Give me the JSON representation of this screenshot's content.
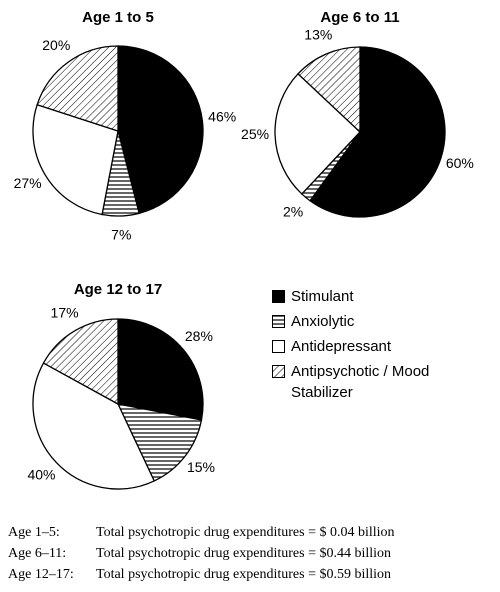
{
  "chart_data": [
    {
      "type": "pie",
      "title": "Age 1 to 5",
      "categories": [
        "Stimulant",
        "Anxiolytic",
        "Antidepressant",
        "Antipsychotic / Mood Stabilizer"
      ],
      "values": [
        46,
        7,
        27,
        20
      ],
      "value_labels": [
        "46%",
        "7%",
        "27%",
        "20%"
      ],
      "fills": [
        "black",
        "hlines",
        "white",
        "dhatch"
      ],
      "footnote": {
        "label": "Age 1–5:",
        "text": "Total psychotropic drug expenditures = $ 0.04 billion"
      }
    },
    {
      "type": "pie",
      "title": "Age 6 to 11",
      "categories": [
        "Stimulant",
        "Anxiolytic",
        "Antidepressant",
        "Antipsychotic / Mood Stabilizer"
      ],
      "values": [
        60,
        2,
        25,
        13
      ],
      "value_labels": [
        "60%",
        "2%",
        "25%",
        "13%"
      ],
      "fills": [
        "black",
        "hlines",
        "white",
        "dhatch"
      ],
      "footnote": {
        "label": "Age 6–11:",
        "text": "Total psychotropic drug expenditures = $0.44 billion"
      }
    },
    {
      "type": "pie",
      "title": "Age 12 to 17",
      "categories": [
        "Stimulant",
        "Anxiolytic",
        "Antidepressant",
        "Antipsychotic / Mood Stabilizer"
      ],
      "values": [
        28,
        15,
        40,
        17
      ],
      "value_labels": [
        "28%",
        "15%",
        "40%",
        "17%"
      ],
      "fills": [
        "black",
        "hlines",
        "white",
        "dhatch"
      ],
      "footnote": {
        "label": "Age 12–17:",
        "text": "Total psychotropic drug expenditures = $0.59 billion"
      }
    }
  ]
}
